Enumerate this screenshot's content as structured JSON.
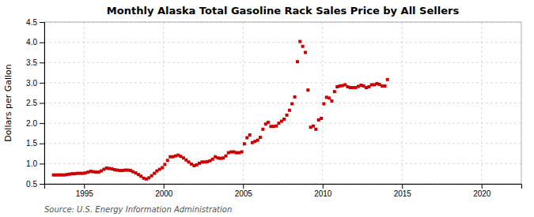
{
  "chart_data": {
    "type": "scatter",
    "title": "Monthly Alaska Total Gasoline Rack Sales Price by All Sellers",
    "ylabel": "Dollars per Gallon",
    "source": "Source: U.S. Energy Information Administration",
    "color": "#cc0000",
    "marker": "square",
    "grid": true,
    "xlim": [
      1992.5,
      2022.5
    ],
    "ylim": [
      0.5,
      4.5
    ],
    "xticks": [
      1995,
      2000,
      2005,
      2010,
      2015,
      2020
    ],
    "yticks": [
      0.5,
      {
        "value": 1.0,
        "label": "1.0"
      },
      1.5,
      {
        "value": 2.0,
        "label": "2.0"
      },
      2.5,
      {
        "value": 3.0,
        "label": "3.0"
      },
      3.5,
      {
        "value": 4.0,
        "label": "4.0"
      },
      4.5
    ],
    "x": [
      1993.08,
      1993.25,
      1993.42,
      1993.58,
      1993.75,
      1993.92,
      1994.08,
      1994.25,
      1994.42,
      1994.58,
      1994.75,
      1994.92,
      1995.08,
      1995.25,
      1995.42,
      1995.58,
      1995.75,
      1995.92,
      1996.08,
      1996.25,
      1996.42,
      1996.58,
      1996.75,
      1996.92,
      1997.08,
      1997.25,
      1997.42,
      1997.58,
      1997.75,
      1997.92,
      1998.08,
      1998.25,
      1998.42,
      1998.58,
      1998.75,
      1998.92,
      1999.08,
      1999.25,
      1999.42,
      1999.58,
      1999.75,
      1999.92,
      2000.08,
      2000.25,
      2000.42,
      2000.58,
      2000.75,
      2000.92,
      2001.08,
      2001.25,
      2001.42,
      2001.58,
      2001.75,
      2001.92,
      2002.08,
      2002.25,
      2002.42,
      2002.58,
      2002.75,
      2002.92,
      2003.08,
      2003.25,
      2003.42,
      2003.58,
      2003.75,
      2003.92,
      2004.08,
      2004.25,
      2004.42,
      2004.58,
      2004.75,
      2004.92,
      2005.08,
      2005.25,
      2005.42,
      2005.58,
      2005.75,
      2005.92,
      2006.08,
      2006.25,
      2006.42,
      2006.58,
      2006.75,
      2006.92,
      2007.08,
      2007.25,
      2007.42,
      2007.58,
      2007.75,
      2007.92,
      2008.08,
      2008.25,
      2008.42,
      2008.58,
      2008.75,
      2008.92,
      2009.08,
      2009.25,
      2009.42,
      2009.58,
      2009.75,
      2009.92,
      2010.08,
      2010.25,
      2010.42,
      2010.58,
      2010.75,
      2010.92,
      2011.08,
      2011.25,
      2011.42,
      2011.58,
      2011.75,
      2011.92,
      2012.08,
      2012.25,
      2012.42,
      2012.58,
      2012.75,
      2012.92,
      2013.08,
      2013.25,
      2013.42,
      2013.58,
      2013.75,
      2013.92,
      2014.08
    ],
    "values": [
      0.72,
      0.72,
      0.72,
      0.72,
      0.72,
      0.73,
      0.74,
      0.75,
      0.75,
      0.76,
      0.76,
      0.76,
      0.77,
      0.79,
      0.81,
      0.8,
      0.79,
      0.79,
      0.82,
      0.86,
      0.89,
      0.88,
      0.87,
      0.85,
      0.84,
      0.83,
      0.83,
      0.84,
      0.84,
      0.83,
      0.8,
      0.77,
      0.73,
      0.69,
      0.64,
      0.62,
      0.65,
      0.7,
      0.76,
      0.82,
      0.86,
      0.9,
      0.98,
      1.08,
      1.17,
      1.17,
      1.19,
      1.21,
      1.18,
      1.14,
      1.09,
      1.04,
      0.99,
      0.95,
      0.97,
      1.01,
      1.04,
      1.04,
      1.05,
      1.07,
      1.11,
      1.17,
      1.14,
      1.13,
      1.14,
      1.19,
      1.27,
      1.29,
      1.29,
      1.27,
      1.27,
      1.29,
      1.49,
      1.64,
      1.71,
      1.52,
      1.55,
      1.58,
      1.65,
      1.85,
      1.98,
      2.02,
      1.92,
      1.92,
      1.93,
      2.0,
      2.05,
      2.1,
      2.2,
      2.32,
      2.48,
      2.65,
      3.52,
      4.02,
      3.9,
      3.75,
      2.82,
      1.9,
      1.93,
      1.85,
      2.08,
      2.12,
      2.48,
      2.64,
      2.62,
      2.55,
      2.78,
      2.9,
      2.92,
      2.93,
      2.95,
      2.9,
      2.88,
      2.88,
      2.88,
      2.91,
      2.94,
      2.92,
      2.88,
      2.9,
      2.95,
      2.95,
      2.98,
      2.96,
      2.92,
      2.92,
      3.08
    ]
  }
}
